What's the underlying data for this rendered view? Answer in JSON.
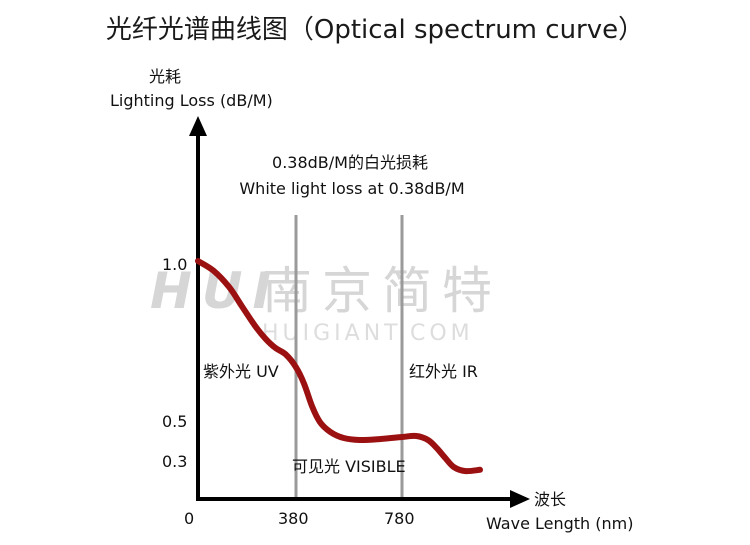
{
  "chart_data": {
    "type": "line",
    "title": "光纤光谱曲线图（Optical spectrum curve）",
    "ylabel_cn": "光耗",
    "ylabel": "Lighting Loss (dB/M)",
    "xlabel_cn": "波长",
    "xlabel": "Wave Length (nm)",
    "annotation_cn": "0.38dB/M的白光损耗",
    "annotation": "White light loss at 0.38dB/M",
    "x_ticks": [
      "0",
      "380",
      "780"
    ],
    "y_ticks": [
      "1.0",
      "0.5",
      "0.3"
    ],
    "region_labels": {
      "uv": "紫外光 UV",
      "visible": "可见光 VISIBLE",
      "ir": "红外光 IR"
    },
    "reference_lines_x": [
      380,
      780
    ],
    "xlim": [
      0,
      1100
    ],
    "series": [
      {
        "color": "#9b1111",
        "points": [
          [
            0,
            1.0
          ],
          [
            60,
            0.97
          ],
          [
            120,
            0.92
          ],
          [
            170,
            0.86
          ],
          [
            220,
            0.8
          ],
          [
            260,
            0.76
          ],
          [
            300,
            0.73
          ],
          [
            340,
            0.71
          ],
          [
            380,
            0.67
          ],
          [
            410,
            0.62
          ],
          [
            440,
            0.55
          ],
          [
            470,
            0.5
          ],
          [
            510,
            0.45
          ],
          [
            560,
            0.42
          ],
          [
            620,
            0.41
          ],
          [
            700,
            0.415
          ],
          [
            780,
            0.425
          ],
          [
            830,
            0.43
          ],
          [
            870,
            0.41
          ],
          [
            900,
            0.37
          ],
          [
            930,
            0.32
          ],
          [
            960,
            0.28
          ],
          [
            1000,
            0.265
          ],
          [
            1050,
            0.27
          ]
        ]
      }
    ]
  },
  "watermark": {
    "logo": "HUI",
    "cn": "南京简特",
    "en": "HUIGIANT.COM"
  }
}
